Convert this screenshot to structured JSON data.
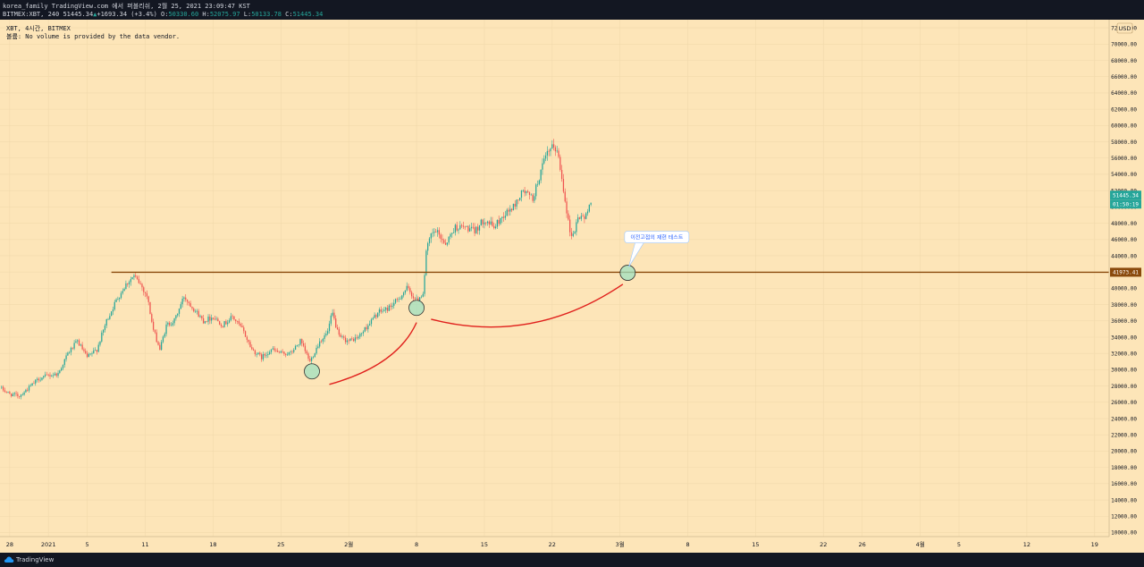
{
  "header": {
    "line1": "korea_family TradingView.com 에서 퍼블리쉬, 2월 25, 2021 23:09:47 KST",
    "symbol_prefix": "BITMEX:XBT, 240 ",
    "last_price": "51445.34",
    "change_arrow": "▲",
    "change_text": "+1693.34 (+3.4%)",
    "o_label": "O:",
    "o_value": "50330.60",
    "h_label": "H:",
    "h_value": "52075.97",
    "l_label": "L:",
    "l_value": "50133.78",
    "c_label": "C:",
    "c_value": "51445.34"
  },
  "legend": {
    "symbol_line": "XBT, 4시간, BITMEX",
    "volume_note": "볼륨: No volume is provided by the data vendor."
  },
  "footer": {
    "brand": "TradingView"
  },
  "colors": {
    "background": "#fde5b8",
    "grid": "#f1d9ab",
    "up": "#26a69a",
    "down": "#ef5350",
    "support_line": "#8a4a0c",
    "curve": "#e0201c",
    "circle_fill": "#9fe0c0",
    "price_tag": "#26a69a"
  },
  "chart_data": {
    "type": "candlestick",
    "title": "XBT, 4시간, BITMEX",
    "currency_label": "USD",
    "y_ticks": [
      72000,
      70000,
      68000,
      66000,
      64000,
      62000,
      60000,
      58000,
      56000,
      54000,
      52000,
      50000,
      48000,
      46000,
      44000,
      42000,
      40000,
      38000,
      36000,
      34000,
      32000,
      30000,
      28000,
      26000,
      24000,
      22000,
      20000,
      18000,
      16000,
      14000,
      12000,
      10000
    ],
    "y_tick_labels": [
      "72000.00",
      "70000.00",
      "68000.00",
      "66000.00",
      "64000.00",
      "62000.00",
      "60000.00",
      "58000.00",
      "56000.00",
      "54000.00",
      "52000.00",
      "50000.00",
      "48000.00",
      "46000.00",
      "44000.00",
      "42000.00",
      "40000.00",
      "38000.00",
      "36000.00",
      "34000.00",
      "32000.00",
      "30000.00",
      "28000.00",
      "26000.00",
      "24000.00",
      "22000.00",
      "20000.00",
      "18000.00",
      "16000.00",
      "14000.00",
      "12000.00",
      "10000.00"
    ],
    "ylim": [
      9500,
      73000
    ],
    "x_ticks": [
      {
        "label": "28",
        "day": -4
      },
      {
        "label": "2021",
        "day": 0
      },
      {
        "label": "5",
        "day": 4
      },
      {
        "label": "11",
        "day": 10
      },
      {
        "label": "18",
        "day": 17
      },
      {
        "label": "25",
        "day": 24
      },
      {
        "label": "2월",
        "day": 31
      },
      {
        "label": "8",
        "day": 38
      },
      {
        "label": "15",
        "day": 45
      },
      {
        "label": "22",
        "day": 52
      },
      {
        "label": "3월",
        "day": 59
      },
      {
        "label": "8",
        "day": 66
      },
      {
        "label": "15",
        "day": 73
      },
      {
        "label": "22",
        "day": 80
      },
      {
        "label": "26",
        "day": 84
      },
      {
        "label": "4월",
        "day": 90
      },
      {
        "label": "5",
        "day": 94
      },
      {
        "label": "12",
        "day": 101
      },
      {
        "label": "19",
        "day": 108
      }
    ],
    "xlim": [
      -5,
      109.5
    ],
    "bar_interval_hours": 4,
    "last_price": 51445.34,
    "last_price_label": "51445.34",
    "countdown_label": "01:50:19",
    "support_level": 41973.41,
    "support_label": "41973.41",
    "support_start_day": 6.5,
    "close_path": [
      {
        "day": -5.0,
        "price": 27800
      },
      {
        "day": -4.0,
        "price": 27000
      },
      {
        "day": -3.0,
        "price": 26800
      },
      {
        "day": -2.0,
        "price": 27800
      },
      {
        "day": -1.0,
        "price": 28900
      },
      {
        "day": 0.0,
        "price": 29300
      },
      {
        "day": 1.0,
        "price": 29500
      },
      {
        "day": 2.0,
        "price": 32000
      },
      {
        "day": 3.0,
        "price": 33500
      },
      {
        "day": 4.0,
        "price": 31500
      },
      {
        "day": 5.0,
        "price": 32500
      },
      {
        "day": 6.0,
        "price": 36000
      },
      {
        "day": 7.0,
        "price": 38500
      },
      {
        "day": 8.0,
        "price": 40500
      },
      {
        "day": 8.8,
        "price": 41500
      },
      {
        "day": 9.5,
        "price": 40500
      },
      {
        "day": 10.2,
        "price": 39000
      },
      {
        "day": 10.8,
        "price": 35000
      },
      {
        "day": 11.5,
        "price": 32500
      },
      {
        "day": 12.2,
        "price": 35500
      },
      {
        "day": 13.0,
        "price": 36000
      },
      {
        "day": 14.0,
        "price": 39000
      },
      {
        "day": 15.0,
        "price": 37500
      },
      {
        "day": 16.0,
        "price": 36000
      },
      {
        "day": 17.0,
        "price": 36500
      },
      {
        "day": 18.0,
        "price": 35500
      },
      {
        "day": 19.0,
        "price": 36500
      },
      {
        "day": 20.0,
        "price": 35000
      },
      {
        "day": 21.0,
        "price": 32500
      },
      {
        "day": 22.0,
        "price": 31500
      },
      {
        "day": 23.0,
        "price": 32500
      },
      {
        "day": 24.0,
        "price": 32000
      },
      {
        "day": 25.0,
        "price": 32000
      },
      {
        "day": 26.0,
        "price": 33500
      },
      {
        "day": 27.0,
        "price": 31000
      },
      {
        "day": 28.0,
        "price": 33500
      },
      {
        "day": 28.8,
        "price": 34500
      },
      {
        "day": 29.3,
        "price": 37000
      },
      {
        "day": 30.0,
        "price": 34000
      },
      {
        "day": 31.0,
        "price": 33500
      },
      {
        "day": 32.0,
        "price": 34000
      },
      {
        "day": 33.0,
        "price": 35500
      },
      {
        "day": 34.0,
        "price": 37000
      },
      {
        "day": 35.0,
        "price": 37500
      },
      {
        "day": 36.0,
        "price": 38500
      },
      {
        "day": 37.0,
        "price": 40000
      },
      {
        "day": 38.0,
        "price": 38500
      },
      {
        "day": 38.7,
        "price": 39500
      },
      {
        "day": 39.0,
        "price": 44500
      },
      {
        "day": 39.5,
        "price": 46500
      },
      {
        "day": 40.0,
        "price": 47000
      },
      {
        "day": 41.0,
        "price": 45500
      },
      {
        "day": 42.0,
        "price": 47500
      },
      {
        "day": 43.0,
        "price": 47500
      },
      {
        "day": 44.0,
        "price": 47000
      },
      {
        "day": 45.0,
        "price": 48500
      },
      {
        "day": 46.0,
        "price": 47500
      },
      {
        "day": 47.0,
        "price": 49000
      },
      {
        "day": 48.0,
        "price": 50000
      },
      {
        "day": 49.0,
        "price": 52000
      },
      {
        "day": 50.0,
        "price": 51000
      },
      {
        "day": 51.0,
        "price": 55000
      },
      {
        "day": 51.5,
        "price": 56500
      },
      {
        "day": 52.2,
        "price": 57500
      },
      {
        "day": 52.6,
        "price": 56500
      },
      {
        "day": 53.0,
        "price": 53500
      },
      {
        "day": 53.4,
        "price": 50500
      },
      {
        "day": 53.8,
        "price": 47000
      },
      {
        "day": 54.2,
        "price": 46500
      },
      {
        "day": 54.6,
        "price": 48500
      },
      {
        "day": 55.0,
        "price": 49000
      },
      {
        "day": 55.4,
        "price": 48500
      },
      {
        "day": 55.8,
        "price": 50000
      },
      {
        "day": 56.1,
        "price": 51445
      }
    ],
    "annotations": [
      {
        "type": "circle",
        "day": 27.2,
        "price": 29800
      },
      {
        "type": "circle",
        "day": 38.0,
        "price": 37600
      },
      {
        "type": "circle",
        "day": 59.8,
        "price": 41900
      },
      {
        "type": "arc",
        "from": {
          "day": 29.0,
          "price": 28200
        },
        "control": {
          "day": 36.0,
          "price": 30500
        },
        "to": {
          "day": 38.0,
          "price": 35800
        }
      },
      {
        "type": "arc",
        "from": {
          "day": 39.5,
          "price": 36200
        },
        "control": {
          "day": 50.0,
          "price": 33000
        },
        "to": {
          "day": 59.3,
          "price": 40500
        }
      },
      {
        "type": "callout",
        "text": "이전고점의 재현 테스트",
        "day": 62.8,
        "price": 46300,
        "pointer_to": {
          "day": 59.9,
          "price": 42600
        }
      }
    ]
  }
}
